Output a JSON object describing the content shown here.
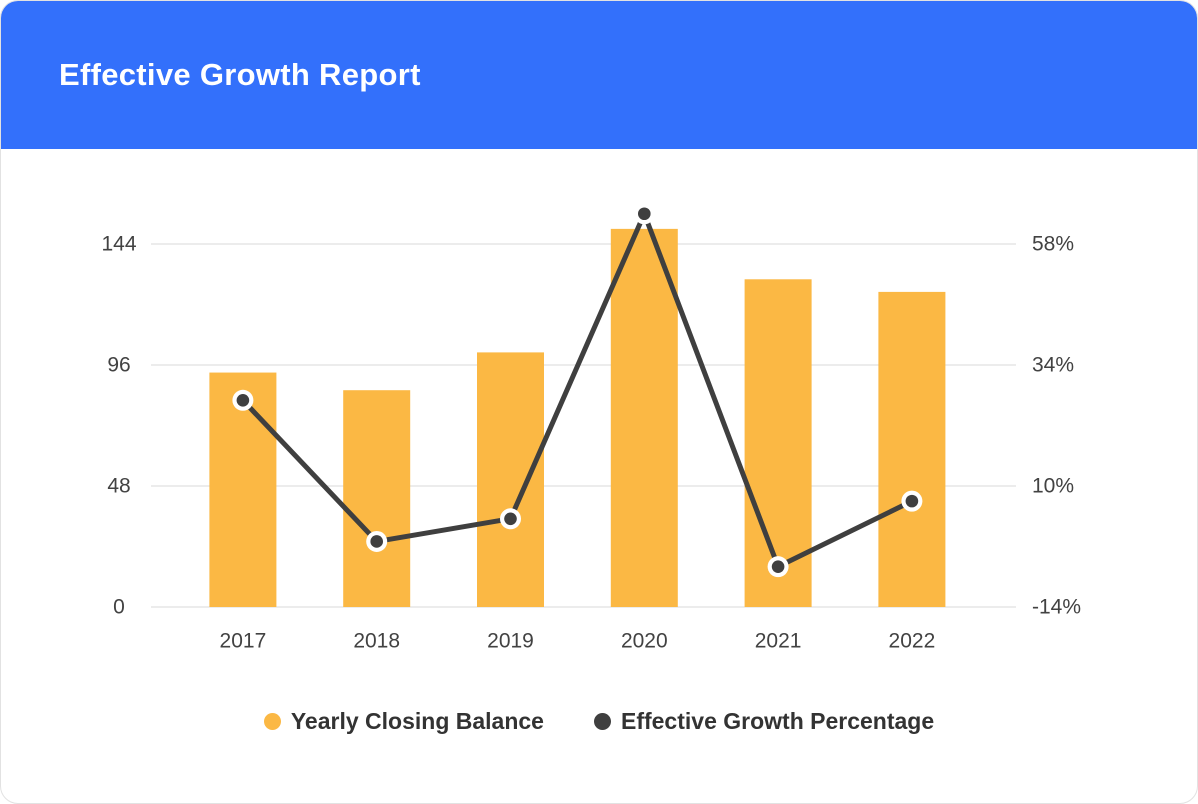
{
  "header": {
    "title": "Effective Growth Report"
  },
  "colors": {
    "header_bg": "#3370FB",
    "title_text": "#FFFFFF",
    "bar": "#FBB844",
    "line": "#3F3F3F",
    "grid": "#ECECEC",
    "axis_text": "#424242",
    "legend_text": "#333333",
    "card_border": "#E2E2E2"
  },
  "chart_data": {
    "type": "bar",
    "title": "Effective Growth Report",
    "categories": [
      "2017",
      "2018",
      "2019",
      "2020",
      "2021",
      "2022"
    ],
    "series": [
      {
        "name": "Yearly Closing Balance",
        "type": "bar",
        "axis": "left",
        "color": "#FBB844",
        "values": [
          93,
          86,
          101,
          150,
          130,
          125
        ]
      },
      {
        "name": "Effective Growth Percentage",
        "type": "line",
        "axis": "right",
        "color": "#3F3F3F",
        "values": [
          27,
          -1,
          3.5,
          64,
          -6,
          7
        ]
      }
    ],
    "left_axis": {
      "ticks": [
        0,
        48,
        96,
        144
      ],
      "min": 0,
      "max": 168
    },
    "right_axis": {
      "ticks": [
        "-14%",
        "10%",
        "34%",
        "58%"
      ],
      "tick_values": [
        -14,
        10,
        34,
        58
      ],
      "min": -14,
      "max": 70
    },
    "grid": true,
    "legend_position": "bottom"
  },
  "legend": {
    "items": [
      {
        "label": "Yearly Closing Balance",
        "color": "#FBB844"
      },
      {
        "label": "Effective Growth Percentage",
        "color": "#3F3F3F"
      }
    ]
  }
}
